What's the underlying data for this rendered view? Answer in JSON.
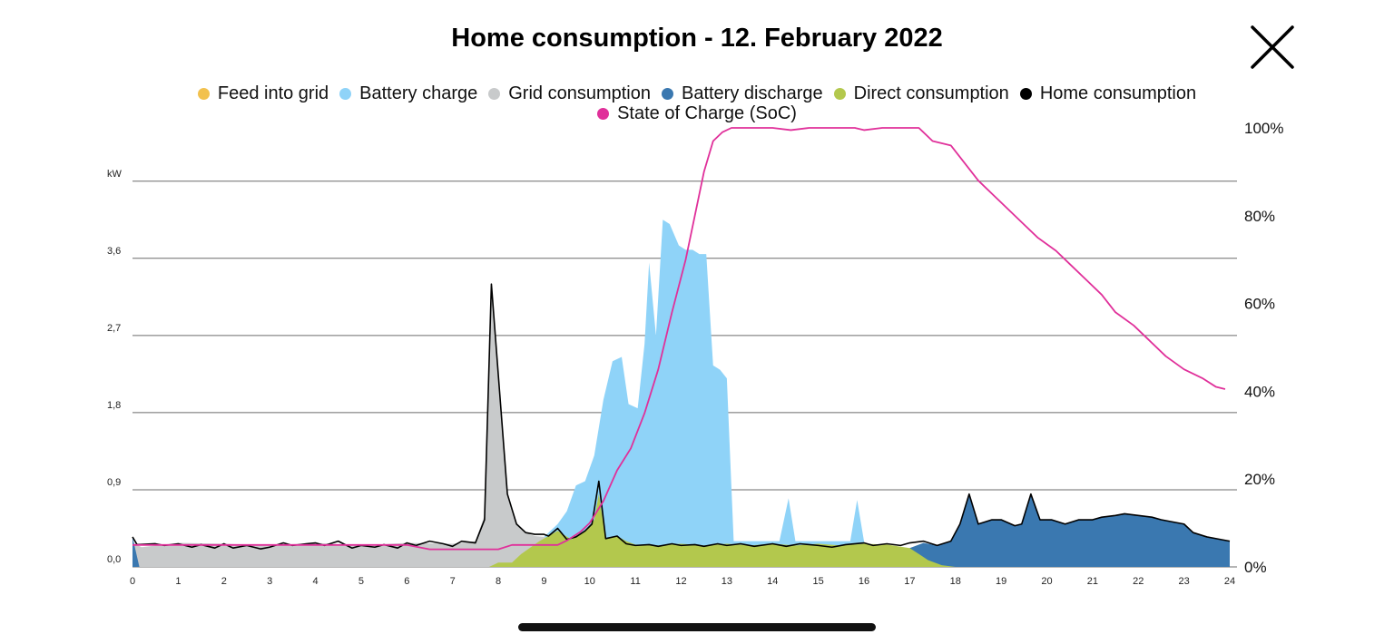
{
  "header": {
    "title": "Home consumption - 12. February 2022",
    "close_icon": "close-x-icon"
  },
  "chart_data": {
    "type": "area",
    "title": "Home consumption - 12. February 2022",
    "y_unit_label": "kW",
    "x_ticks": [
      "0",
      "1",
      "2",
      "3",
      "4",
      "5",
      "6",
      "7",
      "8",
      "9",
      "10",
      "11",
      "12",
      "13",
      "14",
      "15",
      "16",
      "17",
      "18",
      "19",
      "20",
      "21",
      "22",
      "23",
      "24"
    ],
    "y_left_ticks": [
      "0,0",
      "0,9",
      "1,8",
      "2,7",
      "3,6"
    ],
    "y_left_values": [
      0,
      0.9,
      1.8,
      2.7,
      3.6
    ],
    "y_right_ticks": [
      "0%",
      "20%",
      "40%",
      "60%",
      "80%",
      "100%"
    ],
    "y_right_values": [
      0,
      20,
      40,
      60,
      80,
      100
    ],
    "xlim": [
      0,
      24
    ],
    "ylim_left": [
      0,
      4.5
    ],
    "ylim_right": [
      0,
      100
    ],
    "grid": "horizontal",
    "legend_position": "top",
    "series": [
      {
        "name": "Feed into grid",
        "color": "#f2c14e",
        "values": [
          [
            0,
            0
          ],
          [
            24,
            0
          ]
        ]
      },
      {
        "name": "Battery charge",
        "color": "#8fd3f8",
        "values": [
          [
            8.3,
            0
          ],
          [
            8.6,
            0.15
          ],
          [
            8.9,
            0.3
          ],
          [
            9.1,
            0.4
          ],
          [
            9.3,
            0.5
          ],
          [
            9.5,
            0.65
          ],
          [
            9.7,
            0.95
          ],
          [
            9.9,
            1.0
          ],
          [
            10.1,
            1.3
          ],
          [
            10.3,
            1.95
          ],
          [
            10.5,
            2.4
          ],
          [
            10.7,
            2.45
          ],
          [
            10.85,
            1.9
          ],
          [
            11.05,
            1.85
          ],
          [
            11.2,
            2.6
          ],
          [
            11.3,
            3.55
          ],
          [
            11.45,
            2.7
          ],
          [
            11.6,
            4.05
          ],
          [
            11.75,
            4.0
          ],
          [
            11.95,
            3.75
          ],
          [
            12.1,
            3.7
          ],
          [
            12.25,
            3.7
          ],
          [
            12.4,
            3.65
          ],
          [
            12.55,
            3.65
          ],
          [
            12.7,
            2.35
          ],
          [
            12.85,
            2.3
          ],
          [
            13.0,
            2.2
          ],
          [
            13.15,
            0.3
          ],
          [
            14.15,
            0.3
          ],
          [
            14.35,
            0.8
          ],
          [
            14.5,
            0.3
          ],
          [
            15.7,
            0.3
          ],
          [
            15.85,
            0.78
          ],
          [
            16.0,
            0.3
          ],
          [
            16.1,
            0
          ]
        ]
      },
      {
        "name": "Grid consumption",
        "color": "#c8cacb",
        "values": [
          [
            0,
            0.28
          ],
          [
            0.2,
            0.23
          ],
          [
            1,
            0.28
          ],
          [
            2,
            0.27
          ],
          [
            3,
            0.25
          ],
          [
            4,
            0.28
          ],
          [
            5,
            0.25
          ],
          [
            6,
            0.28
          ],
          [
            7,
            0.27
          ],
          [
            7.5,
            0.3
          ],
          [
            7.7,
            0.6
          ],
          [
            7.85,
            3.3
          ],
          [
            8.05,
            1.9
          ],
          [
            8.2,
            0.85
          ],
          [
            8.4,
            0.5
          ],
          [
            8.6,
            0.4
          ],
          [
            8.8,
            0.36
          ],
          [
            9.0,
            0.35
          ],
          [
            9.3,
            0.3
          ],
          [
            9.5,
            0.3
          ],
          [
            10,
            0.3
          ],
          [
            10.3,
            0.2
          ],
          [
            10.4,
            0
          ]
        ]
      },
      {
        "name": "Battery discharge",
        "color": "#3a78b0",
        "values": [
          [
            0,
            0.35
          ],
          [
            0.15,
            0
          ],
          [
            16.8,
            0
          ],
          [
            17.0,
            0.22
          ],
          [
            17.3,
            0.28
          ],
          [
            17.6,
            0.25
          ],
          [
            17.9,
            0.3
          ],
          [
            18.1,
            0.5
          ],
          [
            18.3,
            0.85
          ],
          [
            18.5,
            0.5
          ],
          [
            18.8,
            0.55
          ],
          [
            19.0,
            0.55
          ],
          [
            19.3,
            0.48
          ],
          [
            19.45,
            0.5
          ],
          [
            19.65,
            0.85
          ],
          [
            19.85,
            0.55
          ],
          [
            20.1,
            0.55
          ],
          [
            20.4,
            0.5
          ],
          [
            20.7,
            0.55
          ],
          [
            21.0,
            0.55
          ],
          [
            21.2,
            0.58
          ],
          [
            21.5,
            0.6
          ],
          [
            21.7,
            0.62
          ],
          [
            22.0,
            0.6
          ],
          [
            22.3,
            0.58
          ],
          [
            22.5,
            0.55
          ],
          [
            22.8,
            0.52
          ],
          [
            23.0,
            0.5
          ],
          [
            23.2,
            0.4
          ],
          [
            23.5,
            0.35
          ],
          [
            23.8,
            0.32
          ],
          [
            24,
            0.3
          ]
        ]
      },
      {
        "name": "Direct consumption",
        "color": "#b3c84d",
        "values": [
          [
            7.8,
            0
          ],
          [
            8.0,
            0.05
          ],
          [
            8.3,
            0.05
          ],
          [
            8.5,
            0.15
          ],
          [
            8.9,
            0.3
          ],
          [
            9.3,
            0.42
          ],
          [
            9.6,
            0.32
          ],
          [
            9.9,
            0.42
          ],
          [
            10.1,
            0.55
          ],
          [
            10.2,
            0.85
          ],
          [
            10.35,
            0.33
          ],
          [
            10.6,
            0.36
          ],
          [
            10.8,
            0.3
          ],
          [
            11,
            0.26
          ],
          [
            11.5,
            0.25
          ],
          [
            12,
            0.27
          ],
          [
            12.5,
            0.25
          ],
          [
            13,
            0.27
          ],
          [
            13.5,
            0.25
          ],
          [
            14,
            0.27
          ],
          [
            14.5,
            0.25
          ],
          [
            15,
            0.27
          ],
          [
            15.5,
            0.25
          ],
          [
            16,
            0.27
          ],
          [
            16.5,
            0.26
          ],
          [
            17.0,
            0.22
          ],
          [
            17.4,
            0.08
          ],
          [
            17.7,
            0.02
          ],
          [
            18,
            0
          ]
        ]
      },
      {
        "name": "Home consumption",
        "color": "#000000",
        "values": [
          [
            0,
            0.35
          ],
          [
            0.1,
            0.26
          ],
          [
            0.5,
            0.27
          ],
          [
            0.7,
            0.25
          ],
          [
            1,
            0.27
          ],
          [
            1.3,
            0.23
          ],
          [
            1.5,
            0.26
          ],
          [
            1.8,
            0.22
          ],
          [
            2,
            0.27
          ],
          [
            2.2,
            0.22
          ],
          [
            2.5,
            0.25
          ],
          [
            2.8,
            0.21
          ],
          [
            3,
            0.23
          ],
          [
            3.3,
            0.28
          ],
          [
            3.5,
            0.25
          ],
          [
            3.8,
            0.27
          ],
          [
            4,
            0.28
          ],
          [
            4.2,
            0.25
          ],
          [
            4.5,
            0.3
          ],
          [
            4.8,
            0.22
          ],
          [
            5,
            0.25
          ],
          [
            5.3,
            0.23
          ],
          [
            5.5,
            0.26
          ],
          [
            5.8,
            0.22
          ],
          [
            6,
            0.28
          ],
          [
            6.2,
            0.25
          ],
          [
            6.5,
            0.3
          ],
          [
            6.8,
            0.27
          ],
          [
            7,
            0.24
          ],
          [
            7.2,
            0.3
          ],
          [
            7.5,
            0.28
          ],
          [
            7.7,
            0.55
          ],
          [
            7.85,
            3.3
          ],
          [
            8.05,
            1.9
          ],
          [
            8.2,
            0.85
          ],
          [
            8.4,
            0.5
          ],
          [
            8.6,
            0.4
          ],
          [
            8.8,
            0.38
          ],
          [
            9.0,
            0.38
          ],
          [
            9.1,
            0.36
          ],
          [
            9.3,
            0.45
          ],
          [
            9.5,
            0.32
          ],
          [
            9.7,
            0.35
          ],
          [
            9.9,
            0.42
          ],
          [
            10.05,
            0.5
          ],
          [
            10.2,
            1.0
          ],
          [
            10.35,
            0.33
          ],
          [
            10.6,
            0.36
          ],
          [
            10.8,
            0.27
          ],
          [
            11,
            0.25
          ],
          [
            11.3,
            0.26
          ],
          [
            11.5,
            0.24
          ],
          [
            11.8,
            0.27
          ],
          [
            12,
            0.25
          ],
          [
            12.3,
            0.26
          ],
          [
            12.5,
            0.24
          ],
          [
            12.8,
            0.27
          ],
          [
            13,
            0.25
          ],
          [
            13.3,
            0.27
          ],
          [
            13.6,
            0.24
          ],
          [
            14,
            0.27
          ],
          [
            14.3,
            0.24
          ],
          [
            14.6,
            0.27
          ],
          [
            15,
            0.25
          ],
          [
            15.3,
            0.23
          ],
          [
            15.6,
            0.26
          ],
          [
            16,
            0.28
          ],
          [
            16.2,
            0.25
          ],
          [
            16.5,
            0.27
          ],
          [
            16.8,
            0.25
          ],
          [
            17,
            0.28
          ],
          [
            17.3,
            0.3
          ],
          [
            17.6,
            0.25
          ],
          [
            17.9,
            0.3
          ],
          [
            18.1,
            0.5
          ],
          [
            18.3,
            0.85
          ],
          [
            18.5,
            0.5
          ],
          [
            18.8,
            0.55
          ],
          [
            19.0,
            0.55
          ],
          [
            19.3,
            0.48
          ],
          [
            19.45,
            0.5
          ],
          [
            19.65,
            0.85
          ],
          [
            19.85,
            0.55
          ],
          [
            20.1,
            0.55
          ],
          [
            20.4,
            0.5
          ],
          [
            20.7,
            0.55
          ],
          [
            21.0,
            0.55
          ],
          [
            21.2,
            0.58
          ],
          [
            21.5,
            0.6
          ],
          [
            21.7,
            0.62
          ],
          [
            22.0,
            0.6
          ],
          [
            22.3,
            0.58
          ],
          [
            22.5,
            0.55
          ],
          [
            22.8,
            0.52
          ],
          [
            23.0,
            0.5
          ],
          [
            23.2,
            0.4
          ],
          [
            23.5,
            0.35
          ],
          [
            23.8,
            0.32
          ],
          [
            24,
            0.3
          ]
        ]
      }
    ],
    "soc_series": {
      "name": "State of Charge (SoC)",
      "color": "#e0309a",
      "axis": "right",
      "values": [
        [
          0,
          5
        ],
        [
          1,
          5
        ],
        [
          2,
          5
        ],
        [
          3,
          5
        ],
        [
          4,
          5
        ],
        [
          5,
          5
        ],
        [
          6,
          5
        ],
        [
          6.5,
          4
        ],
        [
          7,
          4
        ],
        [
          8,
          4
        ],
        [
          8.3,
          5
        ],
        [
          9,
          5
        ],
        [
          9.3,
          5
        ],
        [
          9.5,
          6
        ],
        [
          9.8,
          8
        ],
        [
          10,
          10
        ],
        [
          10.3,
          15
        ],
        [
          10.6,
          22
        ],
        [
          10.9,
          27
        ],
        [
          11.2,
          35
        ],
        [
          11.5,
          45
        ],
        [
          11.8,
          58
        ],
        [
          12.1,
          70
        ],
        [
          12.3,
          80
        ],
        [
          12.5,
          90
        ],
        [
          12.7,
          97
        ],
        [
          12.9,
          99
        ],
        [
          13.1,
          100
        ],
        [
          14,
          100
        ],
        [
          14.4,
          99.5
        ],
        [
          14.8,
          100
        ],
        [
          15.8,
          100
        ],
        [
          16,
          99.5
        ],
        [
          16.4,
          100
        ],
        [
          17.2,
          100
        ],
        [
          17.5,
          97
        ],
        [
          17.9,
          96
        ],
        [
          18.2,
          92
        ],
        [
          18.5,
          88
        ],
        [
          18.8,
          85
        ],
        [
          19.1,
          82
        ],
        [
          19.5,
          78
        ],
        [
          19.8,
          75
        ],
        [
          20.2,
          72
        ],
        [
          20.5,
          69
        ],
        [
          20.9,
          65
        ],
        [
          21.2,
          62
        ],
        [
          21.5,
          58
        ],
        [
          21.9,
          55
        ],
        [
          22.2,
          52
        ],
        [
          22.6,
          48
        ],
        [
          23,
          45
        ],
        [
          23.4,
          43
        ],
        [
          23.7,
          41
        ],
        [
          23.9,
          40.5
        ]
      ]
    }
  }
}
